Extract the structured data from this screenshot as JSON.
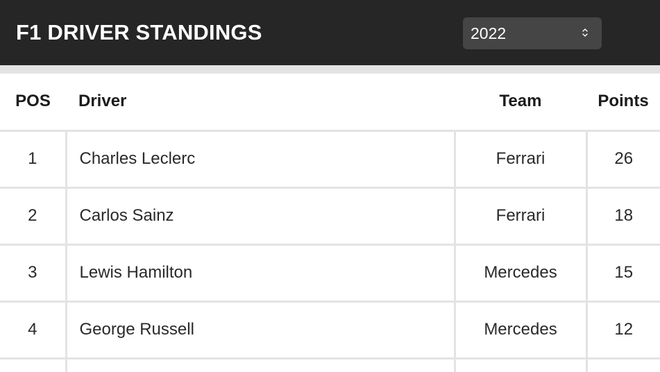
{
  "header": {
    "title": "F1 DRIVER STANDINGS",
    "season_select": {
      "value": "2022",
      "icon": "chevron-up-down-icon"
    }
  },
  "table": {
    "columns": {
      "pos": "POS",
      "driver": "Driver",
      "team": "Team",
      "points": "Points"
    },
    "rows": [
      {
        "pos": "1",
        "driver": "Charles Leclerc",
        "team": "Ferrari",
        "points": "26"
      },
      {
        "pos": "2",
        "driver": "Carlos Sainz",
        "team": "Ferrari",
        "points": "18"
      },
      {
        "pos": "3",
        "driver": "Lewis Hamilton",
        "team": "Mercedes",
        "points": "15"
      },
      {
        "pos": "4",
        "driver": "George Russell",
        "team": "Mercedes",
        "points": "12"
      }
    ]
  },
  "colors": {
    "header_bg": "#262626",
    "select_bg": "#454545",
    "divider": "#e3e3e3",
    "text": "#222222"
  }
}
